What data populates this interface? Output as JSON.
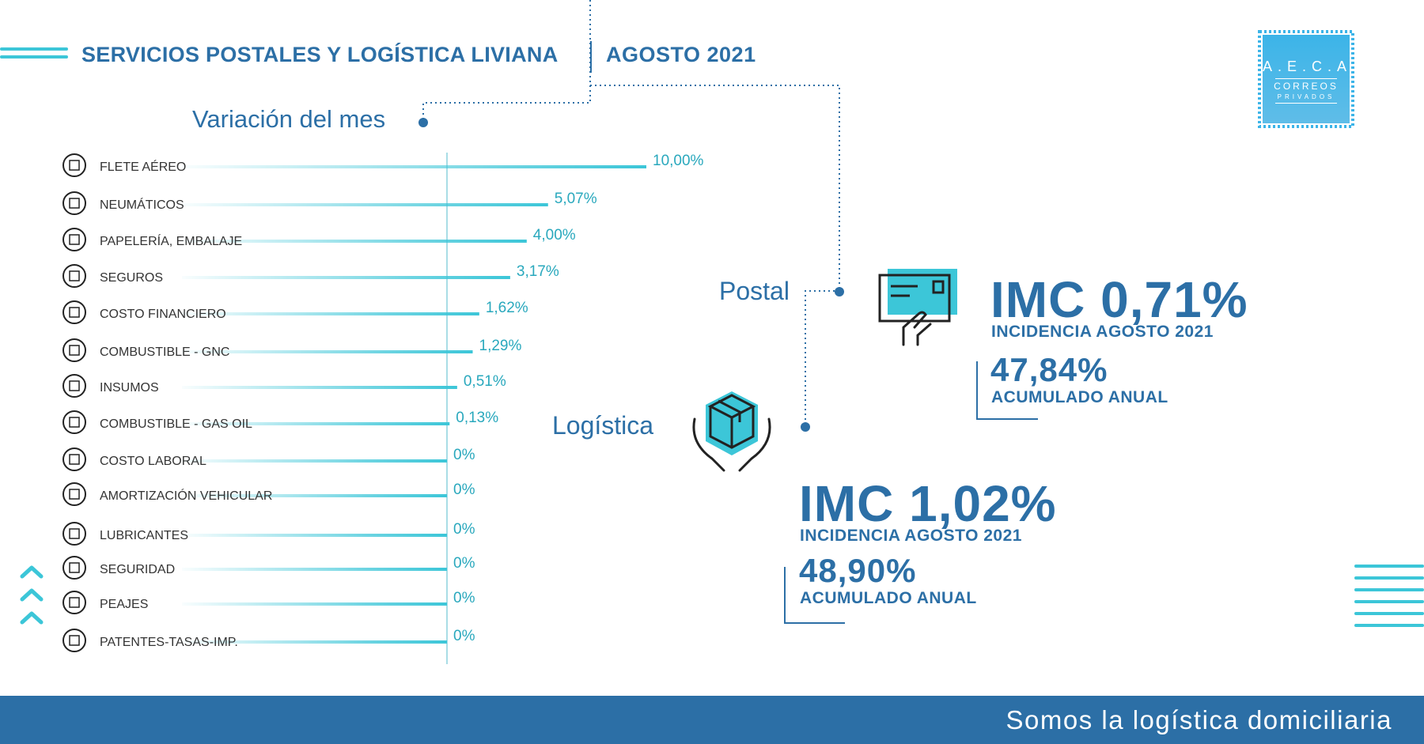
{
  "header": {
    "title": "SERVICIOS POSTALES Y LOGÍSTICA LIVIANA",
    "date": "AGOSTO 2021"
  },
  "logo": {
    "line1": "A.E.C.A",
    "line2": "CORREOS",
    "line3": "PRIVADOS"
  },
  "chart_data": {
    "type": "bar",
    "title": "Variación del mes",
    "categories": [
      "FLETE AÉREO",
      "NEUMÁTICOS",
      "PAPELERÍA, EMBALAJE",
      "SEGUROS",
      "COSTO FINANCIERO",
      "COMBUSTIBLE - GNC",
      "INSUMOS",
      "COMBUSTIBLE - GAS OIL",
      "COSTO LABORAL",
      "AMORTIZACIÓN VEHICULAR",
      "LUBRICANTES",
      "SEGURIDAD",
      "PEAJES",
      "PATENTES-TASAS-IMP."
    ],
    "values": [
      10.0,
      5.07,
      4.0,
      3.17,
      1.62,
      1.29,
      0.51,
      0.13,
      0,
      0,
      0,
      0,
      0,
      0
    ],
    "value_labels": [
      "10,00%",
      "5,07%",
      "4,00%",
      "3,17%",
      "1,62%",
      "1,29%",
      "0,51%",
      "0,13%",
      "0%",
      "0%",
      "0%",
      "0%",
      "0%",
      "0%"
    ],
    "icons": [
      "airplane-icon",
      "tire-icon",
      "box-icon",
      "shield-box-icon",
      "pie-chart-icon",
      "gas-cylinder-icon",
      "checklist-icon",
      "fuel-pump-icon",
      "money-icon",
      "truck-icon",
      "oil-can-icon",
      "security-guard-icon",
      "toll-icon",
      "tax-icon"
    ],
    "bar_color": "#3cc6d8",
    "orientation": "horizontal"
  },
  "postal": {
    "label": "Postal",
    "imc": "IMC 0,71%",
    "incidence": "INCIDENCIA AGOSTO 2021",
    "accumulated_value": "47,84%",
    "accumulated_label": "ACUMULADO ANUAL",
    "icon": "envelope-hand-icon"
  },
  "logistics": {
    "label": "Logística",
    "imc": "IMC 1,02%",
    "incidence": "INCIDENCIA AGOSTO 2021",
    "accumulated_value": "48,90%",
    "accumulated_label": "ACUMULADO ANUAL",
    "icon": "package-hands-icon"
  },
  "footer": {
    "tagline": "Somos la logística domiciliaria"
  },
  "colors": {
    "primary": "#2c6fa6",
    "accent": "#3cc6d8"
  }
}
